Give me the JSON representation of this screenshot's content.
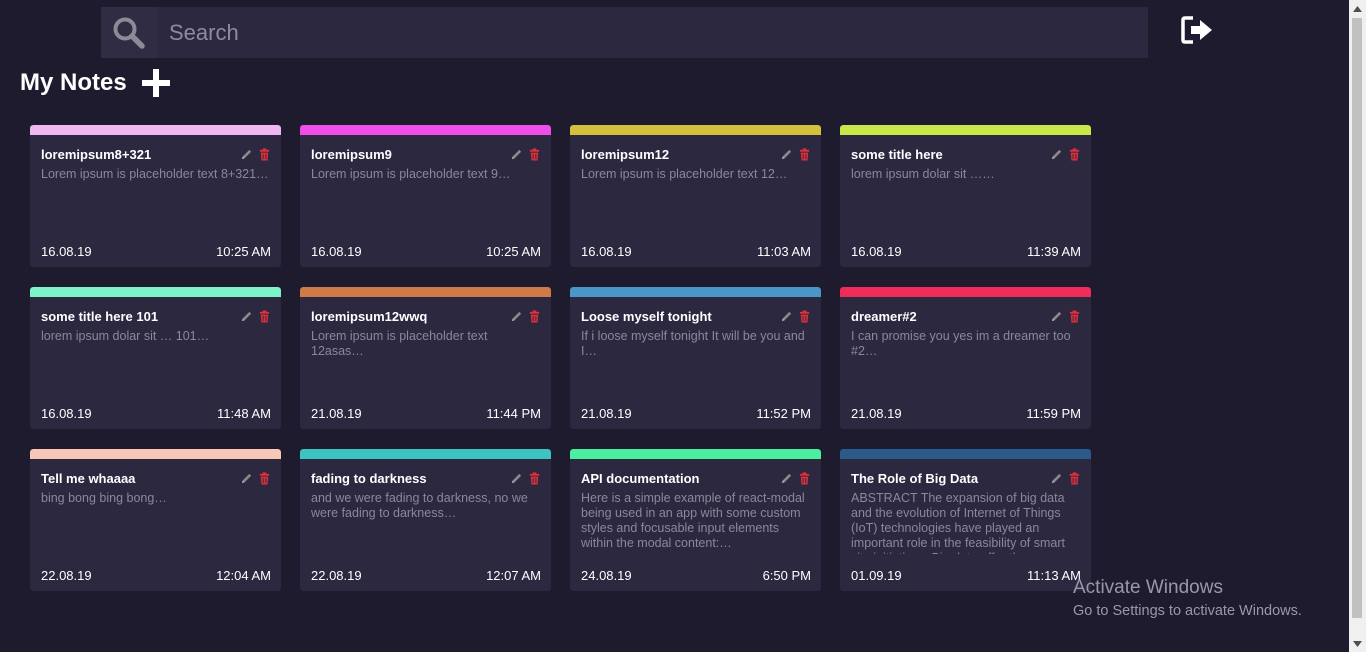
{
  "search": {
    "placeholder": "Search",
    "value": ""
  },
  "header": {
    "title": "My Notes"
  },
  "icons": {
    "search": "search-icon",
    "logout": "logout-icon",
    "add": "plus-icon",
    "edit": "pencil-icon",
    "delete": "trash-icon"
  },
  "colors": {
    "background": "#1e1b2e",
    "card": "#2b2840",
    "delete": "#e0303a",
    "edit": "#8a8a8a"
  },
  "notes": [
    {
      "title": "loremipsum8+321",
      "body": "Lorem ipsum is placeholder text 8+321…",
      "date": "16.08.19",
      "time": "10:25 AM",
      "color": "#f0b8f0"
    },
    {
      "title": "loremipsum9",
      "body": "Lorem ipsum is placeholder text 9…",
      "date": "16.08.19",
      "time": "10:25 AM",
      "color": "#f04ee8"
    },
    {
      "title": "loremipsum12",
      "body": "Lorem ipsum is placeholder text 12…",
      "date": "16.08.19",
      "time": "11:03 AM",
      "color": "#d4c03c"
    },
    {
      "title": "some title here",
      "body": "lorem ipsum dolar sit ……",
      "date": "16.08.19",
      "time": "11:39 AM",
      "color": "#c8e84a"
    },
    {
      "title": "some title here 101",
      "body": "lorem ipsum dolar sit … 101…",
      "date": "16.08.19",
      "time": "11:48 AM",
      "color": "#7ef2c8"
    },
    {
      "title": "loremipsum12wwq",
      "body": "Lorem ipsum is placeholder text 12asas…",
      "date": "21.08.19",
      "time": "11:44 PM",
      "color": "#d07a48"
    },
    {
      "title": "Loose myself tonight",
      "body": "If i loose myself tonight It will be you and I…",
      "date": "21.08.19",
      "time": "11:52 PM",
      "color": "#4a96c8"
    },
    {
      "title": "dreamer#2",
      "body": "I can promise you yes im a dreamer too #2…",
      "date": "21.08.19",
      "time": "11:59 PM",
      "color": "#f02c5a"
    },
    {
      "title": "Tell me whaaaa",
      "body": "bing bong bing bong…",
      "date": "22.08.19",
      "time": "12:04 AM",
      "color": "#f7c8b6"
    },
    {
      "title": "fading to darkness",
      "body": "and we were fading to darkness, no we were fading to darkness…",
      "date": "22.08.19",
      "time": "12:07 AM",
      "color": "#3ec4c0"
    },
    {
      "title": "API documentation",
      "body": "Here is a simple example of react-modal being used in an app with some custom styles and focusable input elements within the modal content:…",
      "date": "24.08.19",
      "time": "6:50 PM",
      "color": "#4af0a0"
    },
    {
      "title": "The Role of Big Data",
      "body": "ABSTRACT The expansion of big data and the evolution of Internet of Things (IoT) technologies have played an important role in the feasibility of smart city initiatives. Big data offer the",
      "date": "01.09.19",
      "time": "11:13 AM",
      "color": "#2a5a8a"
    }
  ],
  "watermark": {
    "line1": "Activate Windows",
    "line2": "Go to Settings to activate Windows."
  }
}
